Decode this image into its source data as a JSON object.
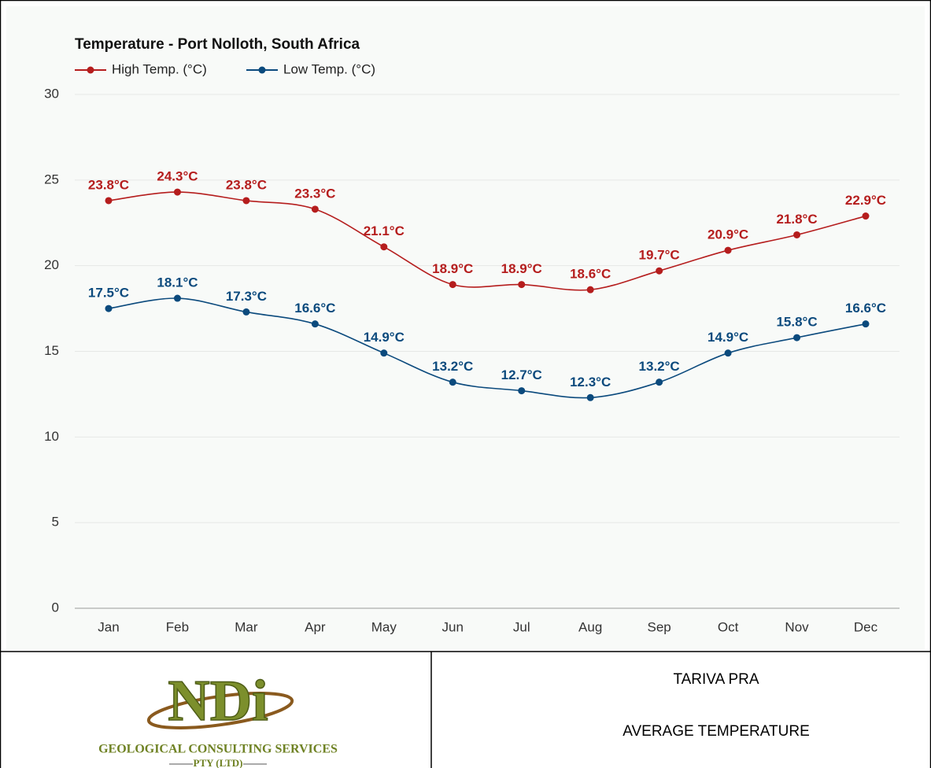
{
  "chart_data": {
    "type": "line",
    "title": "Temperature - Port Nolloth, South Africa",
    "categories": [
      "Jan",
      "Feb",
      "Mar",
      "Apr",
      "May",
      "Jun",
      "Jul",
      "Aug",
      "Sep",
      "Oct",
      "Nov",
      "Dec"
    ],
    "series": [
      {
        "name": "High Temp. (°C)",
        "color": "#b51d1d",
        "values": [
          23.8,
          24.3,
          23.8,
          23.3,
          21.1,
          18.9,
          18.9,
          18.6,
          19.7,
          20.9,
          21.8,
          22.9
        ],
        "value_labels": [
          "23.8°C",
          "24.3°C",
          "23.8°C",
          "23.3°C",
          "21.1°C",
          "18.9°C",
          "18.9°C",
          "18.6°C",
          "19.7°C",
          "20.9°C",
          "21.8°C",
          "22.9°C"
        ]
      },
      {
        "name": "Low Temp. (°C)",
        "color": "#0b4a7d",
        "values": [
          17.5,
          18.1,
          17.3,
          16.6,
          14.9,
          13.2,
          12.7,
          12.3,
          13.2,
          14.9,
          15.8,
          16.6
        ],
        "value_labels": [
          "17.5°C",
          "18.1°C",
          "17.3°C",
          "16.6°C",
          "14.9°C",
          "13.2°C",
          "12.7°C",
          "12.3°C",
          "13.2°C",
          "14.9°C",
          "15.8°C",
          "16.6°C"
        ]
      }
    ],
    "ylim": [
      0,
      30
    ],
    "yticks": [
      0,
      5,
      10,
      15,
      20,
      25,
      30
    ],
    "grid": true,
    "legend": "top-left"
  },
  "footer": {
    "logo_mark": "NDi",
    "logo_text": "GEOLOGICAL CONSULTING SERVICES",
    "logo_sub": "PTY (LTD)",
    "project": "TARIVA PRA",
    "subject": "AVERAGE TEMPERATURE"
  }
}
